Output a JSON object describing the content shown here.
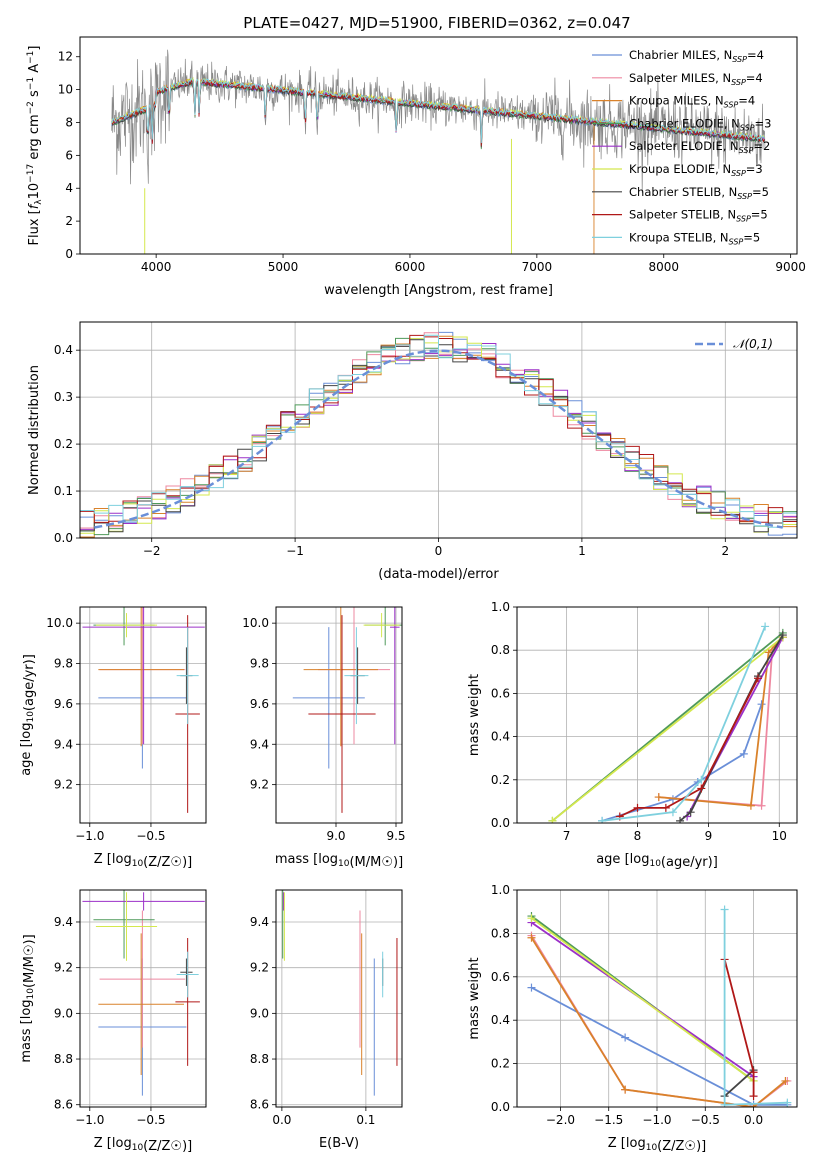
{
  "title": "PLATE=0427, MJD=51900, FIBERID=0362, z=0.047",
  "models": [
    {
      "name": "Chabrier MILES",
      "color": "#6a8fd8"
    },
    {
      "name": "Salpeter MILES",
      "color": "#ee88a0"
    },
    {
      "name": "Kroupa MILES",
      "color": "#d9822b"
    },
    {
      "name": "Chabrier ELODIE",
      "color": "#4f9a5a"
    },
    {
      "name": "Salpeter ELODIE",
      "color": "#9b30c8"
    },
    {
      "name": "Kroupa ELODIE",
      "color": "#d4e84e"
    },
    {
      "name": "Chabrier STELIB",
      "color": "#444444"
    },
    {
      "name": "Salpeter STELIB",
      "color": "#b01818"
    },
    {
      "name": "Kroupa STELIB",
      "color": "#7fd0de"
    }
  ],
  "chart_data": [
    {
      "id": "spectrum",
      "type": "line",
      "xlabel": "wavelength [Angstrom, rest frame]",
      "ylabel": "Flux [fλ10^-17 erg cm^-2 s^-1 A^-1]",
      "xlim": [
        3400,
        9050
      ],
      "ylim": [
        0,
        13.2
      ],
      "xticks": [
        4000,
        5000,
        6000,
        7000,
        8000,
        9000
      ],
      "yticks": [
        0,
        2,
        4,
        6,
        8,
        10,
        12
      ],
      "legend": [
        "Chabrier MILES, N_SSP=4",
        "Salpeter MILES, N_SSP=4",
        "Kroupa MILES, N_SSP=4",
        "Chabrier ELODIE, N_SSP=3",
        "Salpeter ELODIE, N_SSP=2",
        "Kroupa ELODIE, N_SSP=3",
        "Chabrier STELIB, N_SSP=5",
        "Salpeter STELIB, N_SSP=5",
        "Kroupa STELIB, N_SSP=5"
      ],
      "legend_position": "top-right",
      "data_series": {
        "name": "data",
        "color": "#888888",
        "x_range": [
          3650,
          8800
        ]
      },
      "grid": false
    },
    {
      "id": "residuals",
      "type": "line",
      "xlabel": "(data-model)/error",
      "ylabel": "Normed distribution",
      "xlim": [
        -2.5,
        2.5
      ],
      "ylim": [
        0,
        0.46
      ],
      "xticks": [
        -2,
        -1,
        0,
        1,
        2
      ],
      "yticks": [
        0.0,
        0.1,
        0.2,
        0.3,
        0.4
      ],
      "legend": [
        "𝒩(0,1)"
      ],
      "legend_position": "top-right",
      "grid": true
    },
    {
      "id": "age-z",
      "type": "scatter",
      "xlabel": "Z [log10(Z/Z☉)]",
      "ylabel": "age  [log10(age/yr)]",
      "xlim": [
        -1.08,
        -0.05
      ],
      "ylim": [
        9.01,
        10.08
      ],
      "xticks": [
        -1.0,
        -0.5
      ],
      "yticks": [
        9.2,
        9.4,
        9.6,
        9.8,
        10.0
      ],
      "grid": true,
      "points": [
        {
          "x": -0.57,
          "xerr": 0.36,
          "y": 9.63,
          "yerr": 0.35
        },
        {
          "x": -0.57,
          "xerr": 0.35,
          "y": 9.77,
          "yerr": 0.37
        },
        {
          "x": -0.58,
          "xerr": 0.35,
          "y": 9.77,
          "yerr": 0.38
        },
        {
          "x": -0.72,
          "xerr": 0.25,
          "y": 9.99,
          "yerr": 0.1
        },
        {
          "x": -0.56,
          "xerr": 0.5,
          "y": 9.98,
          "yerr": 0.58
        },
        {
          "x": -0.7,
          "xerr": 0.25,
          "y": 9.99,
          "yerr": 0.06
        },
        {
          "x": -0.21,
          "xerr": 0.05,
          "y": 9.74,
          "yerr": 0.14
        },
        {
          "x": -0.2,
          "xerr": 0.1,
          "y": 9.55,
          "yerr": 0.49
        },
        {
          "x": -0.2,
          "xerr": 0.09,
          "y": 9.74,
          "yerr": 0.24
        }
      ]
    },
    {
      "id": "age-mass",
      "type": "scatter",
      "xlabel": "mass [log10(M/M☉)]",
      "xlim": [
        8.5,
        9.55
      ],
      "ylim": [
        9.01,
        10.08
      ],
      "xticks": [
        9.0,
        9.5
      ],
      "yticks": [
        9.2,
        9.4,
        9.6,
        9.8,
        10.0
      ],
      "grid": true,
      "points": [
        {
          "x": 8.94,
          "xerr": 0.3,
          "y": 9.63,
          "yerr": 0.35
        },
        {
          "x": 9.15,
          "xerr": 0.3,
          "y": 9.77,
          "yerr": 0.37
        },
        {
          "x": 9.04,
          "xerr": 0.31,
          "y": 9.77,
          "yerr": 0.38
        },
        {
          "x": 9.41,
          "xerr": 0.17,
          "y": 9.99,
          "yerr": 0.1
        },
        {
          "x": 9.49,
          "xerr": 0.04,
          "y": 9.98,
          "yerr": 0.58
        },
        {
          "x": 9.38,
          "xerr": 0.15,
          "y": 9.99,
          "yerr": 0.06
        },
        {
          "x": 9.18,
          "xerr": 0.06,
          "y": 9.74,
          "yerr": 0.14
        },
        {
          "x": 9.05,
          "xerr": 0.28,
          "y": 9.55,
          "yerr": 0.49
        },
        {
          "x": 9.17,
          "xerr": 0.1,
          "y": 9.74,
          "yerr": 0.24
        }
      ]
    },
    {
      "id": "weight-age",
      "type": "line",
      "xlabel": "age  [log10(age/yr)]",
      "ylabel": "mass weight",
      "xlim": [
        6.3,
        10.25
      ],
      "ylim": [
        0,
        1.0
      ],
      "xticks": [
        7,
        8,
        9,
        10
      ],
      "yticks": [
        0.0,
        0.2,
        0.4,
        0.6,
        0.8,
        1.0
      ],
      "grid": true,
      "series": [
        {
          "name": "Chabrier MILES",
          "x": [
            7.5,
            8.5,
            8.85,
            9.5,
            9.75
          ],
          "y": [
            0.01,
            0.11,
            0.19,
            0.32,
            0.55
          ]
        },
        {
          "name": "Salpeter MILES",
          "x": [
            8.3,
            9.75,
            9.9
          ],
          "y": [
            0.12,
            0.08,
            0.8
          ]
        },
        {
          "name": "Kroupa MILES",
          "x": [
            8.3,
            9.6,
            9.85,
            10.05
          ],
          "y": [
            0.12,
            0.08,
            0.79,
            0.86
          ]
        },
        {
          "name": "Chabrier ELODIE",
          "x": [
            6.8,
            10.05
          ],
          "y": [
            0.01,
            0.88
          ]
        },
        {
          "name": "Salpeter ELODIE",
          "x": [
            8.7,
            10.05
          ],
          "y": [
            0.03,
            0.86
          ]
        },
        {
          "name": "Kroupa ELODIE",
          "x": [
            6.8,
            10.05
          ],
          "y": [
            0.01,
            0.86
          ]
        },
        {
          "name": "Chabrier STELIB",
          "x": [
            8.6,
            8.75,
            9.7,
            10.05
          ],
          "y": [
            0.01,
            0.05,
            0.68,
            0.87
          ]
        },
        {
          "name": "Salpeter STELIB",
          "x": [
            7.75,
            8.0,
            8.4,
            8.9,
            9.7
          ],
          "y": [
            0.03,
            0.07,
            0.07,
            0.16,
            0.67
          ]
        },
        {
          "name": "Kroupa STELIB",
          "x": [
            7.5,
            8.5,
            8.9,
            9.8
          ],
          "y": [
            0.01,
            0.05,
            0.2,
            0.91
          ]
        }
      ]
    },
    {
      "id": "mass-z",
      "type": "scatter",
      "xlabel": "Z [log10(Z/Z☉)]",
      "ylabel": "mass [log10(M/M☉)]",
      "xlim": [
        -1.08,
        -0.05
      ],
      "ylim": [
        8.59,
        9.54
      ],
      "xticks": [
        -1.0,
        -0.5
      ],
      "yticks": [
        8.6,
        8.8,
        9.0,
        9.2,
        9.4
      ],
      "grid": true,
      "points": [
        {
          "x": -0.57,
          "xerr": 0.36,
          "y": 8.94,
          "yerr": 0.3
        },
        {
          "x": -0.57,
          "xerr": 0.35,
          "y": 9.15,
          "yerr": 0.3
        },
        {
          "x": -0.58,
          "xerr": 0.35,
          "y": 9.04,
          "yerr": 0.31
        },
        {
          "x": -0.72,
          "xerr": 0.25,
          "y": 9.41,
          "yerr": 0.17
        },
        {
          "x": -0.56,
          "xerr": 0.5,
          "y": 9.49,
          "yerr": 0.04
        },
        {
          "x": -0.7,
          "xerr": 0.25,
          "y": 9.38,
          "yerr": 0.15
        },
        {
          "x": -0.21,
          "xerr": 0.05,
          "y": 9.18,
          "yerr": 0.06
        },
        {
          "x": -0.2,
          "xerr": 0.1,
          "y": 9.05,
          "yerr": 0.28
        },
        {
          "x": -0.2,
          "xerr": 0.09,
          "y": 9.17,
          "yerr": 0.1
        }
      ]
    },
    {
      "id": "mass-ebv",
      "type": "scatter",
      "xlabel": "E(B-V)",
      "xlim": [
        -0.007,
        0.143
      ],
      "ylim": [
        8.59,
        9.54
      ],
      "xticks": [
        0.0,
        0.1
      ],
      "yticks": [
        8.6,
        8.8,
        9.0,
        9.2,
        9.4
      ],
      "grid": true,
      "points": [
        {
          "x": 0.11,
          "y": 8.94,
          "yerr": 0.3
        },
        {
          "x": 0.093,
          "y": 9.15,
          "yerr": 0.3
        },
        {
          "x": 0.095,
          "y": 9.04,
          "yerr": 0.31
        },
        {
          "x": 0.001,
          "y": 9.41,
          "yerr": 0.17
        },
        {
          "x": 0.002,
          "y": 9.49,
          "yerr": 0.04
        },
        {
          "x": 0.003,
          "y": 9.38,
          "yerr": 0.15
        },
        {
          "x": 0.12,
          "y": 9.18,
          "yerr": 0.06
        },
        {
          "x": 0.137,
          "y": 9.05,
          "yerr": 0.28
        },
        {
          "x": 0.12,
          "y": 9.17,
          "yerr": 0.1
        }
      ]
    },
    {
      "id": "weight-z",
      "type": "line",
      "xlabel": "Z [log10(Z/Z☉)]",
      "ylabel": "mass weight",
      "xlim": [
        -2.45,
        0.45
      ],
      "ylim": [
        0,
        1.0
      ],
      "xticks": [
        -2.0,
        -1.5,
        -1.0,
        -0.5,
        0.0
      ],
      "yticks": [
        0.0,
        0.2,
        0.4,
        0.6,
        0.8,
        1.0
      ],
      "grid": true,
      "series": [
        {
          "name": "Chabrier MILES",
          "x": [
            -2.3,
            -1.33,
            0.0,
            0.35
          ],
          "y": [
            0.55,
            0.32,
            0.01,
            0.01
          ]
        },
        {
          "name": "Salpeter MILES",
          "x": [
            -2.3,
            -1.33,
            0.0,
            0.35
          ],
          "y": [
            0.79,
            0.08,
            0.0,
            0.12
          ]
        },
        {
          "name": "Kroupa MILES",
          "x": [
            -2.3,
            -1.33,
            0.0,
            0.33
          ],
          "y": [
            0.78,
            0.08,
            0.0,
            0.12
          ]
        },
        {
          "name": "Chabrier ELODIE",
          "x": [
            -2.3,
            0.0
          ],
          "y": [
            0.88,
            0.12
          ]
        },
        {
          "name": "Salpeter ELODIE",
          "x": [
            -2.3,
            0.0
          ],
          "y": [
            0.85,
            0.14
          ]
        },
        {
          "name": "Kroupa ELODIE",
          "x": [
            -2.3,
            0.0
          ],
          "y": [
            0.87,
            0.12
          ]
        },
        {
          "name": "Chabrier STELIB",
          "x": [
            -0.3,
            0.0
          ],
          "y": [
            0.05,
            0.17
          ]
        },
        {
          "name": "Salpeter STELIB",
          "x": [
            -0.3,
            0.0,
            0.0
          ],
          "y": [
            0.68,
            0.16,
            0.05
          ]
        },
        {
          "name": "Kroupa STELIB",
          "x": [
            -0.3,
            -0.3,
            0.35
          ],
          "y": [
            0.91,
            0.01,
            0.02
          ]
        }
      ]
    }
  ]
}
